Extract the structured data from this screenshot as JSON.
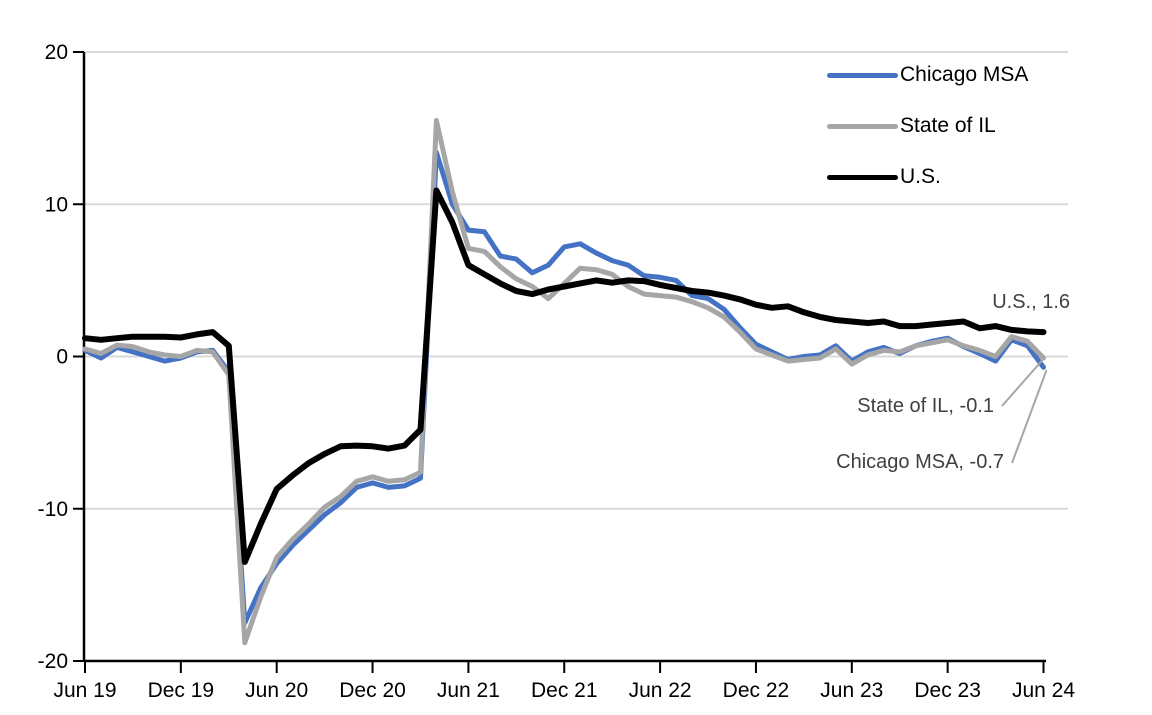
{
  "chart_data": {
    "type": "line",
    "title": "",
    "xlabel": "",
    "ylabel": "",
    "ylim": [
      -20,
      20
    ],
    "y_tick_labels": [
      "20",
      "10",
      "0",
      "-10",
      "-20"
    ],
    "x_tick_labels": [
      "Jun 19",
      "Dec 19",
      "Jun 20",
      "Dec 20",
      "Jun 21",
      "Dec 21",
      "Jun 22",
      "Dec 22",
      "Jun 23",
      "Dec 23",
      "Jun 24"
    ],
    "months_per_tick": 6,
    "n_points": 61,
    "grid": "horizontal",
    "legend_position": "top-right",
    "colors": {
      "grid": "#D9D9D9",
      "axis": "#000000",
      "annotation_text": "#404040",
      "leader_line": "#A6A6A6"
    },
    "series": [
      {
        "name": "Chicago MSA",
        "color": "#4472C4",
        "values": [
          0.4,
          -0.1,
          0.6,
          0.3,
          0.0,
          -0.3,
          -0.1,
          0.3,
          0.4,
          -1.0,
          -17.5,
          -15.2,
          -13.6,
          -12.4,
          -11.4,
          -10.4,
          -9.6,
          -8.6,
          -8.3,
          -8.6,
          -8.5,
          -8.0,
          13.4,
          10.0,
          8.3,
          8.2,
          6.6,
          6.4,
          5.5,
          6.0,
          7.2,
          7.4,
          6.8,
          6.3,
          6.0,
          5.3,
          5.2,
          5.0,
          4.0,
          3.8,
          3.1,
          1.9,
          0.8,
          0.3,
          -0.2,
          0.0,
          0.1,
          0.7,
          -0.3,
          0.3,
          0.6,
          0.2,
          0.7,
          1.0,
          1.2,
          0.65,
          0.2,
          -0.3,
          1.1,
          0.7,
          -0.7
        ]
      },
      {
        "name": "State of IL",
        "color": "#A6A6A6",
        "values": [
          0.5,
          0.2,
          0.75,
          0.65,
          0.3,
          0.1,
          0.0,
          0.4,
          0.3,
          -1.2,
          -18.8,
          -15.8,
          -13.2,
          -12.0,
          -11.0,
          -9.9,
          -9.2,
          -8.2,
          -7.9,
          -8.2,
          -8.1,
          -7.6,
          15.5,
          10.8,
          7.1,
          6.9,
          5.9,
          5.1,
          4.6,
          3.8,
          4.8,
          5.8,
          5.7,
          5.4,
          4.6,
          4.1,
          4.0,
          3.9,
          3.6,
          3.2,
          2.6,
          1.6,
          0.5,
          0.1,
          -0.3,
          -0.2,
          -0.1,
          0.5,
          -0.5,
          0.1,
          0.4,
          0.3,
          0.7,
          0.9,
          1.1,
          0.7,
          0.4,
          0.0,
          1.3,
          1.0,
          -0.1
        ]
      },
      {
        "name": "U.S.",
        "color": "#000000",
        "values": [
          1.2,
          1.1,
          1.2,
          1.3,
          1.3,
          1.3,
          1.25,
          1.45,
          1.6,
          0.7,
          -13.5,
          -11.0,
          -8.7,
          -7.8,
          -7.0,
          -6.4,
          -5.9,
          -5.85,
          -5.9,
          -6.05,
          -5.85,
          -4.8,
          10.9,
          8.8,
          6.0,
          5.4,
          4.8,
          4.3,
          4.1,
          4.4,
          4.6,
          4.8,
          5.0,
          4.85,
          5.0,
          4.95,
          4.7,
          4.5,
          4.3,
          4.2,
          4.0,
          3.75,
          3.4,
          3.2,
          3.3,
          2.9,
          2.6,
          2.4,
          2.3,
          2.2,
          2.3,
          2.0,
          2.0,
          2.1,
          2.2,
          2.3,
          1.85,
          2.0,
          1.75,
          1.65,
          1.6
        ]
      }
    ],
    "annotations": [
      {
        "series": "U.S.",
        "text": "U.S., 1.6",
        "value": 1.6
      },
      {
        "series": "State of IL",
        "text": "State of IL, -0.1",
        "value": -0.1
      },
      {
        "series": "Chicago MSA",
        "text": "Chicago MSA, -0.7",
        "value": -0.7
      }
    ]
  }
}
